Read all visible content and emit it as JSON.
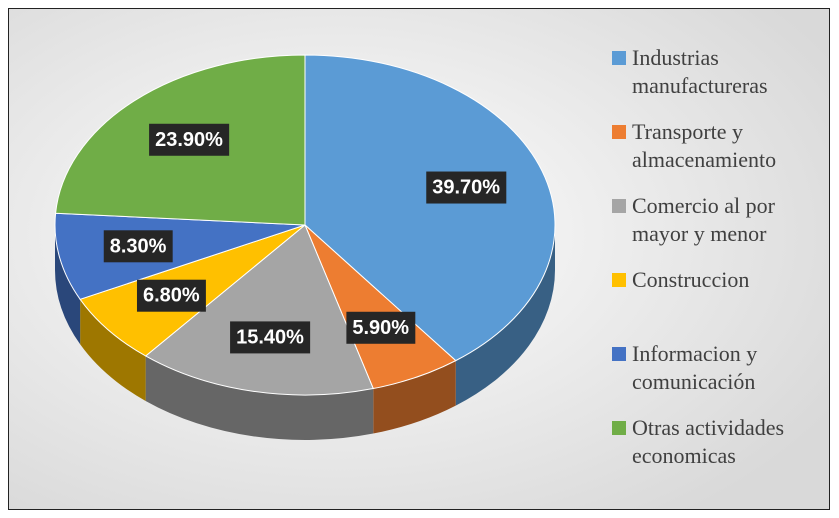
{
  "chart_data": {
    "type": "pie",
    "categories": [
      "Industrias manufactureras",
      "Transporte y almacenamiento",
      "Comercio al por mayor y menor",
      "Construccion",
      "Informacion y comunicación",
      "Otras actividades economicas"
    ],
    "values": [
      39.7,
      5.9,
      15.4,
      6.8,
      8.3,
      23.9
    ],
    "value_labels": [
      "39.70%",
      "5.90%",
      "15.40%",
      "6.80%",
      "8.30%",
      "23.90%"
    ],
    "colors": [
      "#5b9bd5",
      "#ed7d31",
      "#a5a5a5",
      "#ffc000",
      "#4472c4",
      "#70ad47"
    ],
    "legend": "right"
  }
}
